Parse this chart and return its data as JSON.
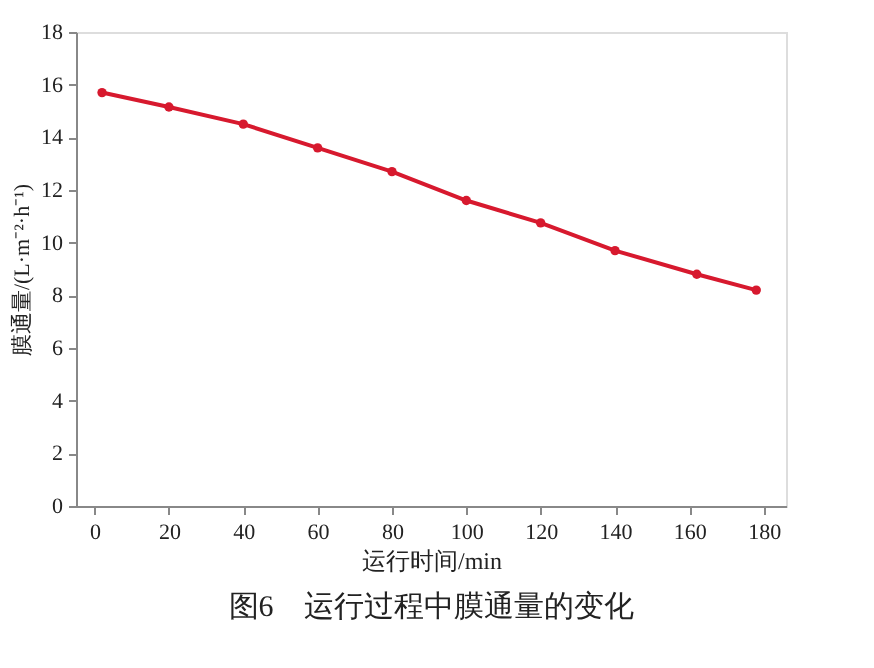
{
  "chart_data": {
    "type": "line",
    "title": "图6　运行过程中膜通量的变化",
    "xlabel": "运行时间/min",
    "ylabel": "膜通量/(L·m⁻²·h⁻¹)",
    "x": [
      2,
      20,
      40,
      60,
      80,
      100,
      120,
      140,
      162,
      178
    ],
    "series": [
      {
        "color": "#d7192e",
        "values": [
          15.7,
          15.15,
          14.5,
          13.6,
          12.7,
          11.6,
          10.75,
          9.7,
          8.8,
          8.2
        ]
      }
    ],
    "xlim": [
      -5,
      186
    ],
    "xticks": [
      0,
      20,
      40,
      60,
      80,
      100,
      120,
      140,
      160,
      180
    ],
    "ylim": [
      0,
      18
    ],
    "yticks": [
      0,
      2,
      4,
      6,
      8,
      10,
      12,
      14,
      16,
      18
    ],
    "grid": false,
    "legend": false,
    "marker": "circle",
    "line_style": "solid"
  }
}
